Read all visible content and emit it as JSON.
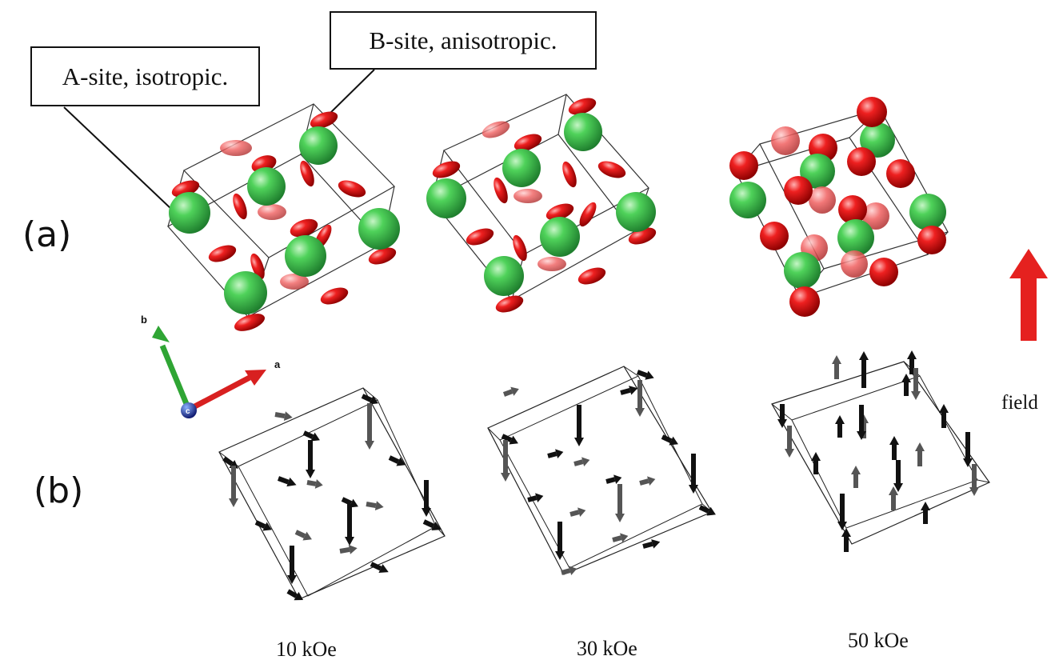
{
  "callouts": {
    "a_site": "A-site, isotropic.",
    "b_site": "B-site, anisotropic."
  },
  "panels": {
    "a": "(a)",
    "b": "(b)"
  },
  "field_axis": {
    "label": "field",
    "color": "#e5211f"
  },
  "crystal_axes": {
    "a": "a",
    "b": "b",
    "c": "c"
  },
  "fields": [
    "10 kOe",
    "30 kOe",
    "50 kOe"
  ],
  "colors": {
    "a_site_atom": "#2fb34a",
    "b_site_atom": "#d41414",
    "spin_black": "#111111",
    "spin_gray": "#555555"
  }
}
